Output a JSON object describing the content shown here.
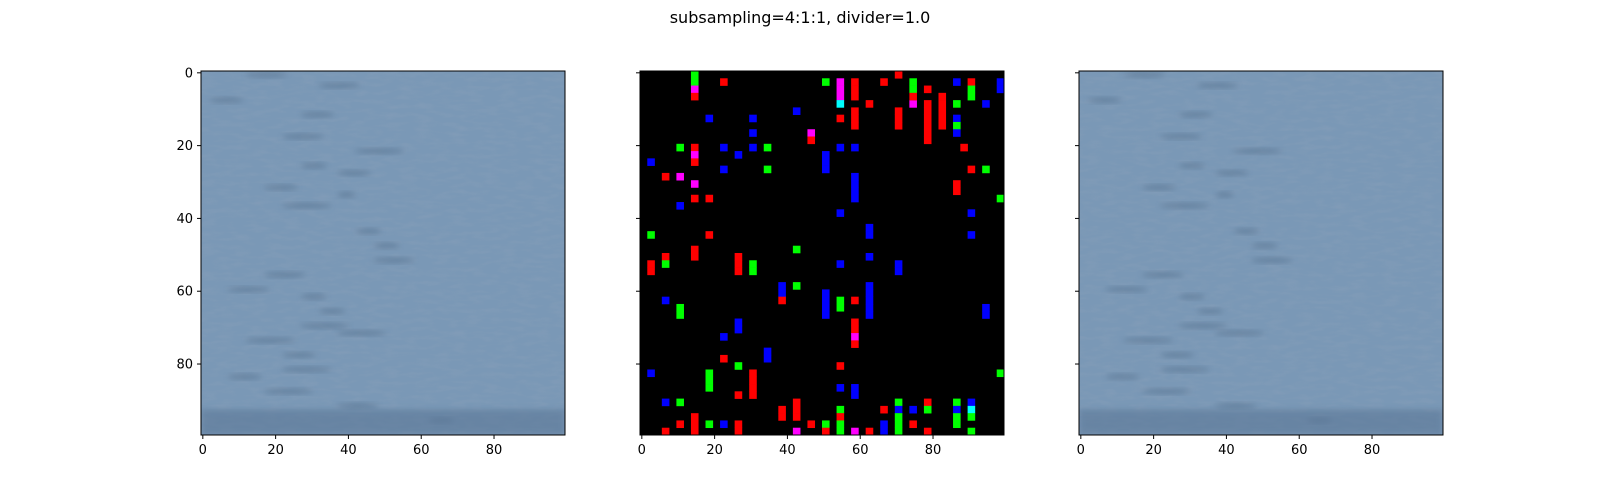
{
  "figure": {
    "title": "subsampling=4:1:1, divider=1.0"
  },
  "chart_data": [
    {
      "type": "heatmap",
      "name": "original",
      "xlim": [
        0,
        99
      ],
      "ylim": [
        99,
        0
      ],
      "x_ticks": [
        0,
        20,
        40,
        60,
        80
      ],
      "y_ticks": [
        0,
        20,
        40,
        60,
        80
      ],
      "x_tick_labels": [
        "0",
        "20",
        "40",
        "60",
        "80"
      ],
      "y_tick_labels": [
        "0",
        "20",
        "40",
        "60",
        "80"
      ],
      "show_x_tick_labels": true,
      "show_y_tick_labels": true,
      "base_color": "#7a98b6",
      "streaks": [
        [
          1,
          18
        ],
        [
          4,
          38
        ],
        [
          8,
          7
        ],
        [
          12,
          32
        ],
        [
          18,
          28
        ],
        [
          22,
          49
        ],
        [
          26,
          31
        ],
        [
          28,
          42
        ],
        [
          32,
          22
        ],
        [
          34,
          40
        ],
        [
          37,
          29
        ],
        [
          44,
          46
        ],
        [
          48,
          51
        ],
        [
          52,
          53
        ],
        [
          56,
          23
        ],
        [
          60,
          13
        ],
        [
          62,
          31
        ],
        [
          66,
          36
        ],
        [
          70,
          34
        ],
        [
          72,
          44
        ],
        [
          74,
          19
        ],
        [
          78,
          27
        ],
        [
          82,
          29
        ],
        [
          84,
          12
        ],
        [
          88,
          24
        ],
        [
          92,
          43
        ],
        [
          96,
          66
        ]
      ],
      "bottom_band_color": "#5c7898"
    },
    {
      "type": "heatmap",
      "name": "difference",
      "xlim": [
        0,
        99
      ],
      "ylim": [
        99,
        0
      ],
      "x_ticks": [
        0,
        20,
        40,
        60,
        80
      ],
      "y_ticks": [
        0,
        20,
        40,
        60,
        80
      ],
      "x_tick_labels": [
        "0",
        "20",
        "40",
        "60",
        "80"
      ],
      "y_tick_labels": [],
      "show_x_tick_labels": true,
      "show_y_tick_labels": false,
      "background": "#000000",
      "cell_size": 2,
      "colors": {
        "R": "#ff0000",
        "G": "#00ff00",
        "B": "#0000ff",
        "M": "#ff00ff",
        "C": "#00ffff"
      },
      "cells": [
        [
          14,
          0,
          "G"
        ],
        [
          14,
          2,
          "G"
        ],
        [
          14,
          4,
          "M"
        ],
        [
          14,
          6,
          "R"
        ],
        [
          22,
          2,
          "R"
        ],
        [
          50,
          2,
          "G"
        ],
        [
          54,
          2,
          "M"
        ],
        [
          54,
          4,
          "M"
        ],
        [
          54,
          6,
          "M"
        ],
        [
          54,
          8,
          "C"
        ],
        [
          58,
          2,
          "R"
        ],
        [
          58,
          4,
          "R"
        ],
        [
          58,
          6,
          "R"
        ],
        [
          66,
          2,
          "R"
        ],
        [
          70,
          0,
          "R"
        ],
        [
          74,
          2,
          "G"
        ],
        [
          74,
          4,
          "G"
        ],
        [
          74,
          8,
          "M"
        ],
        [
          78,
          4,
          "R"
        ],
        [
          78,
          8,
          "R"
        ],
        [
          78,
          10,
          "R"
        ],
        [
          78,
          12,
          "R"
        ],
        [
          78,
          14,
          "R"
        ],
        [
          78,
          16,
          "R"
        ],
        [
          78,
          18,
          "R"
        ],
        [
          82,
          6,
          "R"
        ],
        [
          82,
          8,
          "R"
        ],
        [
          82,
          10,
          "R"
        ],
        [
          82,
          12,
          "R"
        ],
        [
          82,
          14,
          "R"
        ],
        [
          86,
          2,
          "B"
        ],
        [
          86,
          8,
          "G"
        ],
        [
          86,
          12,
          "B"
        ],
        [
          86,
          14,
          "G"
        ],
        [
          86,
          16,
          "B"
        ],
        [
          90,
          2,
          "R"
        ],
        [
          90,
          4,
          "G"
        ],
        [
          90,
          6,
          "G"
        ],
        [
          94,
          8,
          "B"
        ],
        [
          98,
          2,
          "B"
        ],
        [
          98,
          4,
          "B"
        ],
        [
          42,
          10,
          "B"
        ],
        [
          18,
          12,
          "B"
        ],
        [
          30,
          12,
          "B"
        ],
        [
          62,
          8,
          "R"
        ],
        [
          54,
          12,
          "R"
        ],
        [
          58,
          10,
          "R"
        ],
        [
          58,
          12,
          "R"
        ],
        [
          58,
          14,
          "R"
        ],
        [
          70,
          10,
          "R"
        ],
        [
          70,
          12,
          "R"
        ],
        [
          70,
          14,
          "R"
        ],
        [
          74,
          6,
          "R"
        ],
        [
          30,
          16,
          "B"
        ],
        [
          46,
          16,
          "M"
        ],
        [
          46,
          18,
          "R"
        ],
        [
          88,
          20,
          "R"
        ],
        [
          14,
          20,
          "R"
        ],
        [
          14,
          22,
          "M"
        ],
        [
          14,
          24,
          "R"
        ],
        [
          10,
          20,
          "G"
        ],
        [
          22,
          20,
          "B"
        ],
        [
          26,
          22,
          "B"
        ],
        [
          30,
          20,
          "B"
        ],
        [
          34,
          20,
          "G"
        ],
        [
          34,
          26,
          "G"
        ],
        [
          22,
          26,
          "B"
        ],
        [
          50,
          22,
          "B"
        ],
        [
          50,
          24,
          "B"
        ],
        [
          50,
          26,
          "B"
        ],
        [
          54,
          20,
          "B"
        ],
        [
          58,
          20,
          "B"
        ],
        [
          2,
          24,
          "B"
        ],
        [
          90,
          26,
          "R"
        ],
        [
          94,
          26,
          "G"
        ],
        [
          6,
          28,
          "R"
        ],
        [
          10,
          28,
          "M"
        ],
        [
          14,
          30,
          "M"
        ],
        [
          14,
          34,
          "R"
        ],
        [
          18,
          34,
          "R"
        ],
        [
          10,
          36,
          "B"
        ],
        [
          58,
          28,
          "B"
        ],
        [
          58,
          30,
          "B"
        ],
        [
          58,
          32,
          "B"
        ],
        [
          58,
          34,
          "B"
        ],
        [
          86,
          30,
          "R"
        ],
        [
          86,
          32,
          "R"
        ],
        [
          98,
          34,
          "G"
        ],
        [
          54,
          38,
          "B"
        ],
        [
          90,
          38,
          "B"
        ],
        [
          2,
          44,
          "G"
        ],
        [
          18,
          44,
          "R"
        ],
        [
          62,
          42,
          "B"
        ],
        [
          62,
          44,
          "B"
        ],
        [
          90,
          44,
          "B"
        ],
        [
          42,
          48,
          "G"
        ],
        [
          14,
          48,
          "R"
        ],
        [
          14,
          50,
          "R"
        ],
        [
          6,
          50,
          "R"
        ],
        [
          6,
          52,
          "G"
        ],
        [
          2,
          52,
          "R"
        ],
        [
          2,
          54,
          "R"
        ],
        [
          26,
          50,
          "R"
        ],
        [
          26,
          52,
          "R"
        ],
        [
          26,
          54,
          "R"
        ],
        [
          30,
          52,
          "G"
        ],
        [
          30,
          54,
          "G"
        ],
        [
          54,
          52,
          "B"
        ],
        [
          62,
          50,
          "B"
        ],
        [
          70,
          52,
          "B"
        ],
        [
          70,
          54,
          "B"
        ],
        [
          38,
          58,
          "B"
        ],
        [
          38,
          60,
          "B"
        ],
        [
          38,
          62,
          "R"
        ],
        [
          42,
          58,
          "G"
        ],
        [
          6,
          62,
          "B"
        ],
        [
          10,
          64,
          "G"
        ],
        [
          10,
          66,
          "G"
        ],
        [
          50,
          60,
          "B"
        ],
        [
          50,
          62,
          "B"
        ],
        [
          50,
          64,
          "B"
        ],
        [
          50,
          66,
          "B"
        ],
        [
          54,
          62,
          "G"
        ],
        [
          54,
          64,
          "G"
        ],
        [
          58,
          62,
          "R"
        ],
        [
          62,
          58,
          "B"
        ],
        [
          62,
          60,
          "B"
        ],
        [
          62,
          62,
          "B"
        ],
        [
          62,
          64,
          "B"
        ],
        [
          62,
          66,
          "B"
        ],
        [
          94,
          64,
          "B"
        ],
        [
          94,
          66,
          "B"
        ],
        [
          26,
          68,
          "B"
        ],
        [
          26,
          70,
          "B"
        ],
        [
          22,
          72,
          "B"
        ],
        [
          58,
          68,
          "R"
        ],
        [
          58,
          70,
          "R"
        ],
        [
          58,
          72,
          "M"
        ],
        [
          58,
          74,
          "R"
        ],
        [
          34,
          76,
          "B"
        ],
        [
          34,
          78,
          "B"
        ],
        [
          22,
          78,
          "R"
        ],
        [
          26,
          80,
          "G"
        ],
        [
          54,
          80,
          "R"
        ],
        [
          2,
          82,
          "B"
        ],
        [
          98,
          82,
          "G"
        ],
        [
          18,
          82,
          "G"
        ],
        [
          18,
          84,
          "G"
        ],
        [
          18,
          86,
          "G"
        ],
        [
          30,
          82,
          "R"
        ],
        [
          30,
          84,
          "R"
        ],
        [
          30,
          86,
          "R"
        ],
        [
          30,
          88,
          "R"
        ],
        [
          26,
          88,
          "R"
        ],
        [
          54,
          86,
          "B"
        ],
        [
          58,
          86,
          "B"
        ],
        [
          58,
          88,
          "B"
        ],
        [
          6,
          90,
          "B"
        ],
        [
          10,
          90,
          "G"
        ],
        [
          38,
          92,
          "R"
        ],
        [
          38,
          94,
          "R"
        ],
        [
          42,
          90,
          "R"
        ],
        [
          42,
          92,
          "R"
        ],
        [
          42,
          94,
          "R"
        ],
        [
          46,
          96,
          "R"
        ],
        [
          50,
          96,
          "G"
        ],
        [
          50,
          98,
          "R"
        ],
        [
          54,
          92,
          "G"
        ],
        [
          54,
          94,
          "R"
        ],
        [
          54,
          96,
          "G"
        ],
        [
          54,
          98,
          "G"
        ],
        [
          42,
          98,
          "M"
        ],
        [
          58,
          98,
          "M"
        ],
        [
          62,
          98,
          "R"
        ],
        [
          66,
          92,
          "R"
        ],
        [
          66,
          96,
          "B"
        ],
        [
          66,
          98,
          "B"
        ],
        [
          70,
          90,
          "G"
        ],
        [
          70,
          92,
          "B"
        ],
        [
          70,
          94,
          "G"
        ],
        [
          70,
          96,
          "G"
        ],
        [
          70,
          98,
          "G"
        ],
        [
          74,
          92,
          "B"
        ],
        [
          74,
          96,
          "R"
        ],
        [
          78,
          90,
          "R"
        ],
        [
          78,
          92,
          "G"
        ],
        [
          78,
          98,
          "R"
        ],
        [
          86,
          90,
          "G"
        ],
        [
          86,
          92,
          "B"
        ],
        [
          86,
          94,
          "G"
        ],
        [
          86,
          96,
          "G"
        ],
        [
          90,
          90,
          "B"
        ],
        [
          90,
          92,
          "C"
        ],
        [
          90,
          94,
          "G"
        ],
        [
          90,
          98,
          "G"
        ],
        [
          10,
          96,
          "R"
        ],
        [
          14,
          94,
          "R"
        ],
        [
          14,
          96,
          "R"
        ],
        [
          14,
          98,
          "R"
        ],
        [
          18,
          96,
          "G"
        ],
        [
          22,
          96,
          "B"
        ],
        [
          26,
          96,
          "R"
        ],
        [
          26,
          98,
          "R"
        ],
        [
          6,
          98,
          "R"
        ]
      ]
    },
    {
      "type": "heatmap",
      "name": "reconstructed",
      "xlim": [
        0,
        99
      ],
      "ylim": [
        99,
        0
      ],
      "x_ticks": [
        0,
        20,
        40,
        60,
        80
      ],
      "y_ticks": [
        0,
        20,
        40,
        60,
        80
      ],
      "x_tick_labels": [
        "0",
        "20",
        "40",
        "60",
        "80"
      ],
      "y_tick_labels": [],
      "show_x_tick_labels": true,
      "show_y_tick_labels": false,
      "base_color": "#7a98b6",
      "streaks": [
        [
          1,
          18
        ],
        [
          4,
          38
        ],
        [
          8,
          7
        ],
        [
          12,
          32
        ],
        [
          18,
          28
        ],
        [
          22,
          49
        ],
        [
          26,
          31
        ],
        [
          28,
          42
        ],
        [
          32,
          22
        ],
        [
          34,
          40
        ],
        [
          37,
          29
        ],
        [
          44,
          46
        ],
        [
          48,
          51
        ],
        [
          52,
          53
        ],
        [
          56,
          23
        ],
        [
          60,
          13
        ],
        [
          62,
          31
        ],
        [
          66,
          36
        ],
        [
          70,
          34
        ],
        [
          72,
          44
        ],
        [
          74,
          19
        ],
        [
          78,
          27
        ],
        [
          82,
          29
        ],
        [
          84,
          12
        ],
        [
          88,
          24
        ],
        [
          92,
          43
        ],
        [
          96,
          66
        ]
      ],
      "bottom_band_color": "#5c7898"
    }
  ]
}
